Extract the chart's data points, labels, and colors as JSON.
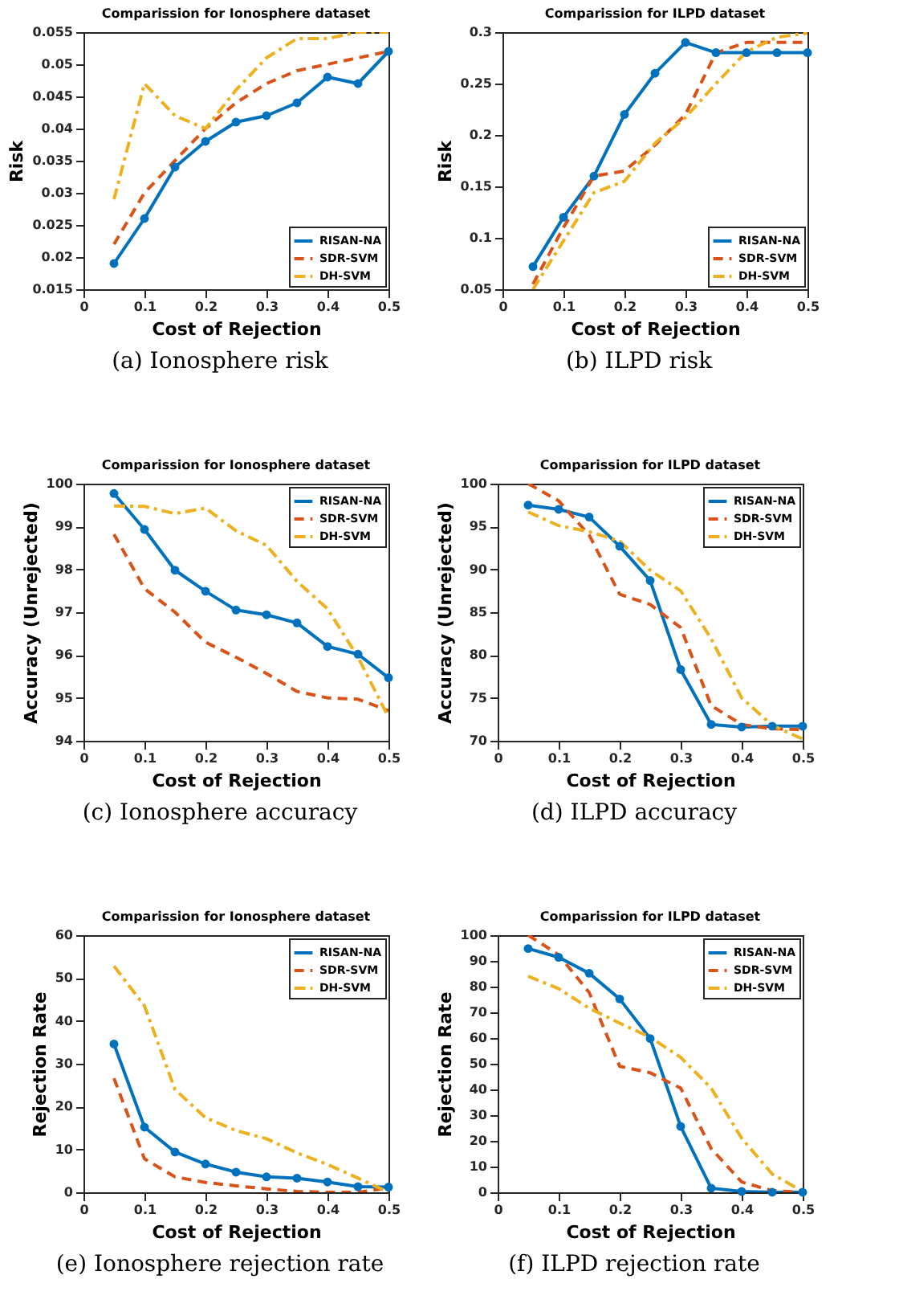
{
  "chart_data": [
    {
      "type": "line",
      "title": "Comparission for Ionosphere dataset",
      "xlabel": "Cost of Rejection",
      "ylabel": "Risk",
      "annotations": [
        "(a) Ionosphere risk"
      ],
      "x": [
        0.05,
        0.1,
        0.15,
        0.2,
        0.25,
        0.3,
        0.35,
        0.4,
        0.45,
        0.5
      ],
      "xlim": [
        0,
        0.5
      ],
      "xticks": [
        0,
        0.1,
        0.2,
        0.3,
        0.4,
        0.5
      ],
      "ylim": [
        0.015,
        0.055
      ],
      "yticks": [
        0.015,
        0.02,
        0.025,
        0.03,
        0.035,
        0.04,
        0.045,
        0.05,
        0.055
      ],
      "legend": "bottom right",
      "series": [
        {
          "name": "RISAN-NA",
          "color": "#0072bd",
          "line_style": "solid",
          "marker": "circle",
          "values": [
            0.019,
            0.026,
            0.034,
            0.038,
            0.041,
            0.042,
            0.044,
            0.048,
            0.047,
            0.052
          ]
        },
        {
          "name": "SDR-SVM",
          "color": "#d95319",
          "line_style": "dashed",
          "marker": "none",
          "values": [
            0.022,
            0.03,
            0.035,
            0.04,
            0.044,
            0.047,
            0.049,
            0.05,
            0.051,
            0.052
          ]
        },
        {
          "name": "DH-SVM",
          "color": "#edb120",
          "line_style": "dashdot",
          "marker": "none",
          "values": [
            0.029,
            0.047,
            0.042,
            0.04,
            0.046,
            0.051,
            0.054,
            0.054,
            0.055,
            0.055
          ]
        }
      ]
    },
    {
      "type": "line",
      "title": "Comparission for ILPD dataset",
      "xlabel": "Cost of Rejection",
      "ylabel": "Risk",
      "annotations": [
        "(b) ILPD risk"
      ],
      "x": [
        0.05,
        0.1,
        0.15,
        0.2,
        0.25,
        0.3,
        0.35,
        0.4,
        0.45,
        0.5
      ],
      "xlim": [
        0,
        0.5
      ],
      "xticks": [
        0,
        0.1,
        0.2,
        0.3,
        0.4,
        0.5
      ],
      "ylim": [
        0.05,
        0.3
      ],
      "yticks": [
        0.05,
        0.1,
        0.15,
        0.2,
        0.25,
        0.3
      ],
      "legend": "bottom right",
      "series": [
        {
          "name": "RISAN-NA",
          "color": "#0072bd",
          "line_style": "solid",
          "marker": "circle",
          "values": [
            0.072,
            0.12,
            0.16,
            0.22,
            0.26,
            0.29,
            0.28,
            0.28,
            0.28,
            0.28
          ]
        },
        {
          "name": "SDR-SVM",
          "color": "#d95319",
          "line_style": "dashed",
          "marker": "none",
          "values": [
            0.055,
            0.11,
            0.16,
            0.165,
            0.19,
            0.22,
            0.28,
            0.29,
            0.29,
            0.29
          ]
        },
        {
          "name": "DH-SVM",
          "color": "#edb120",
          "line_style": "dashdot",
          "marker": "none",
          "values": [
            0.05,
            0.097,
            0.144,
            0.155,
            0.192,
            0.217,
            0.25,
            0.281,
            0.295,
            0.299
          ]
        }
      ]
    },
    {
      "type": "line",
      "title": "Comparission for Ionosphere dataset",
      "xlabel": "Cost of Rejection",
      "ylabel": "Accuracy (Unrejected)",
      "annotations": [
        "(c) Ionosphere accuracy"
      ],
      "x": [
        0.05,
        0.1,
        0.15,
        0.2,
        0.25,
        0.3,
        0.35,
        0.4,
        0.45,
        0.5
      ],
      "xlim": [
        0,
        0.5
      ],
      "xticks": [
        0,
        0.1,
        0.2,
        0.3,
        0.4,
        0.5
      ],
      "ylim": [
        94,
        100
      ],
      "yticks": [
        94,
        95,
        96,
        97,
        98,
        99,
        100
      ],
      "legend": "top right",
      "series": [
        {
          "name": "RISAN-NA",
          "color": "#0072bd",
          "line_style": "solid",
          "marker": "circle",
          "values": [
            99.77,
            98.93,
            97.98,
            97.49,
            97.05,
            96.94,
            96.75,
            96.2,
            96.02,
            95.47
          ]
        },
        {
          "name": "SDR-SVM",
          "color": "#d95319",
          "line_style": "dashed",
          "marker": "none",
          "values": [
            98.82,
            97.55,
            97.0,
            96.3,
            95.95,
            95.57,
            95.15,
            95.0,
            94.97,
            94.7
          ]
        },
        {
          "name": "DH-SVM",
          "color": "#edb120",
          "line_style": "dashdot",
          "marker": "none",
          "values": [
            99.48,
            99.47,
            99.3,
            99.43,
            98.9,
            98.56,
            97.72,
            97.08,
            95.95,
            94.55
          ]
        }
      ]
    },
    {
      "type": "line",
      "title": "Comparission for ILPD dataset",
      "xlabel": "Cost of Rejection",
      "ylabel": "Accuracy (Unrejected)",
      "annotations": [
        "(d) ILPD accuracy"
      ],
      "x": [
        0.05,
        0.1,
        0.15,
        0.2,
        0.25,
        0.3,
        0.35,
        0.4,
        0.45,
        0.5
      ],
      "xlim": [
        0,
        0.5
      ],
      "xticks": [
        0,
        0.1,
        0.2,
        0.3,
        0.4,
        0.5
      ],
      "ylim": [
        70,
        100
      ],
      "yticks": [
        70,
        75,
        80,
        85,
        90,
        95,
        100
      ],
      "legend": "top right",
      "series": [
        {
          "name": "RISAN-NA",
          "color": "#0072bd",
          "line_style": "solid",
          "marker": "circle",
          "values": [
            97.5,
            97.0,
            96.1,
            92.7,
            88.7,
            78.3,
            71.9,
            71.6,
            71.7,
            71.7
          ]
        },
        {
          "name": "SDR-SVM",
          "color": "#d95319",
          "line_style": "dashed",
          "marker": "none",
          "values": [
            100,
            98,
            94,
            87.1,
            85.9,
            83.2,
            74.1,
            71.9,
            71.4,
            71.3
          ]
        },
        {
          "name": "DH-SVM",
          "color": "#edb120",
          "line_style": "dashdot",
          "marker": "none",
          "values": [
            96.7,
            95.1,
            94.4,
            93.3,
            89.9,
            87.5,
            81.9,
            75,
            71.8,
            70.2
          ]
        }
      ]
    },
    {
      "type": "line",
      "title": "Comparission for Ionosphere dataset",
      "xlabel": "Cost of Rejection",
      "ylabel": "Rejection Rate",
      "annotations": [
        "(e) Ionosphere rejection rate"
      ],
      "x": [
        0.05,
        0.1,
        0.15,
        0.2,
        0.25,
        0.3,
        0.35,
        0.4,
        0.45,
        0.5
      ],
      "xlim": [
        0,
        0.5
      ],
      "xticks": [
        0,
        0.1,
        0.2,
        0.3,
        0.4,
        0.5
      ],
      "ylim": [
        0,
        60
      ],
      "yticks": [
        0,
        10,
        20,
        30,
        40,
        50,
        60
      ],
      "legend": "top right",
      "series": [
        {
          "name": "RISAN-NA",
          "color": "#0072bd",
          "line_style": "solid",
          "marker": "circle",
          "values": [
            34.6,
            15.2,
            9.4,
            6.6,
            4.7,
            3.6,
            3.3,
            2.4,
            1.3,
            1.2
          ]
        },
        {
          "name": "SDR-SVM",
          "color": "#d95319",
          "line_style": "dashed",
          "marker": "none",
          "values": [
            26.6,
            7.8,
            3.6,
            2.3,
            1.5,
            0.8,
            0.2,
            0,
            0,
            1.0
          ]
        },
        {
          "name": "DH-SVM",
          "color": "#edb120",
          "line_style": "dashdot",
          "marker": "none",
          "values": [
            52.8,
            43.5,
            24.0,
            17.4,
            14.4,
            12.5,
            9.2,
            6.5,
            3.3,
            0
          ]
        }
      ]
    },
    {
      "type": "line",
      "title": "Comparission for ILPD dataset",
      "xlabel": "Cost of Rejection",
      "ylabel": "Rejection Rate",
      "annotations": [
        "(f) ILPD rejection rate"
      ],
      "x": [
        0.05,
        0.1,
        0.15,
        0.2,
        0.25,
        0.3,
        0.35,
        0.4,
        0.45,
        0.5
      ],
      "xlim": [
        0,
        0.5
      ],
      "xticks": [
        0,
        0.1,
        0.2,
        0.3,
        0.4,
        0.5
      ],
      "ylim": [
        0,
        100
      ],
      "yticks": [
        0,
        10,
        20,
        30,
        40,
        50,
        60,
        70,
        80,
        90,
        100
      ],
      "legend": "top right",
      "series": [
        {
          "name": "RISAN-NA",
          "color": "#0072bd",
          "line_style": "solid",
          "marker": "circle",
          "values": [
            94.8,
            91.4,
            85.2,
            75.2,
            59.8,
            25.6,
            1.6,
            0.3,
            0,
            0
          ]
        },
        {
          "name": "SDR-SVM",
          "color": "#d95319",
          "line_style": "dashed",
          "marker": "none",
          "values": [
            100,
            92.4,
            77.7,
            49,
            46.5,
            40.5,
            17,
            4,
            0.6,
            0
          ]
        },
        {
          "name": "DH-SVM",
          "color": "#edb120",
          "line_style": "dashdot",
          "marker": "none",
          "values": [
            84,
            79.2,
            71.6,
            65.8,
            60.3,
            52.5,
            40.5,
            21,
            7.1,
            0.3
          ]
        }
      ]
    }
  ]
}
